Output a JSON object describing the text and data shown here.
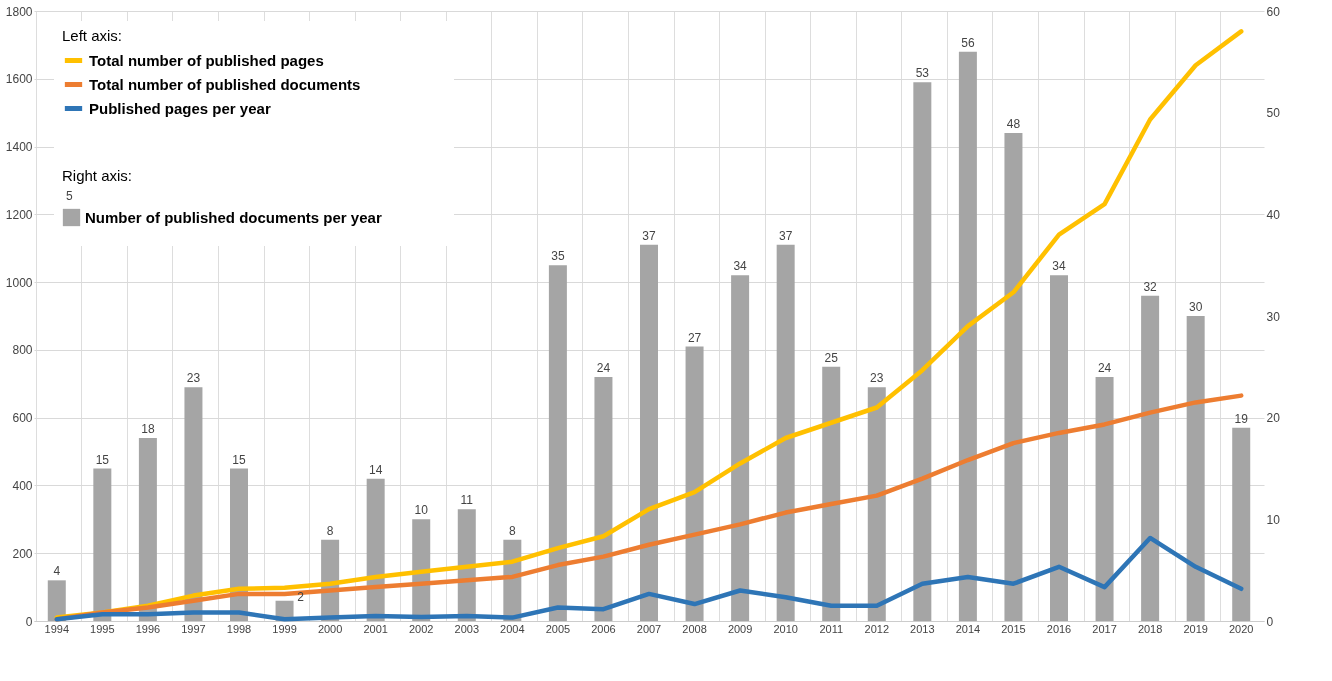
{
  "chart_data": {
    "type": "bar",
    "categories": [
      "1994",
      "1995",
      "1996",
      "1997",
      "1998",
      "1999",
      "2000",
      "2001",
      "2002",
      "2003",
      "2004",
      "2005",
      "2006",
      "2007",
      "2008",
      "2009",
      "2010",
      "2011",
      "2012",
      "2013",
      "2014",
      "2015",
      "2016",
      "2017",
      "2018",
      "2019",
      "2020"
    ],
    "series": [
      {
        "name": "Number of published documents per year",
        "axis": "y2",
        "color": "#a5a5a5",
        "values": [
          4,
          15,
          18,
          23,
          15,
          2,
          8,
          14,
          10,
          11,
          8,
          35,
          24,
          37,
          27,
          34,
          37,
          25,
          23,
          53,
          56,
          48,
          34,
          24,
          32,
          30,
          19
        ],
        "value_labels": [
          "4",
          "15",
          "18",
          "23",
          "15",
          "2",
          "8",
          "14",
          "10",
          "11",
          "8",
          "35",
          "24",
          "37",
          "27",
          "34",
          "37",
          "25",
          "23",
          "53",
          "56",
          "48",
          "34",
          "24",
          "32",
          "30",
          "19"
        ]
      },
      {
        "name": "Total number of published pages",
        "type": "line",
        "color": "#ffc000",
        "values": [
          10,
          25,
          45,
          75,
          95,
          98,
          110,
          130,
          145,
          160,
          175,
          215,
          250,
          330,
          380,
          465,
          540,
          585,
          630,
          740,
          870,
          970,
          1140,
          1230,
          1480,
          1640,
          1740
        ]
      },
      {
        "name": "Total number of published documents",
        "type": "line",
        "color": "#ed7d31",
        "values": [
          5,
          25,
          40,
          60,
          80,
          80,
          90,
          100,
          110,
          120,
          130,
          165,
          190,
          225,
          255,
          285,
          320,
          345,
          370,
          420,
          475,
          525,
          555,
          580,
          615,
          645,
          665
        ]
      },
      {
        "name": "Published pages per year",
        "type": "line",
        "color": "#2e75b6",
        "values": [
          5,
          20,
          20,
          25,
          25,
          5,
          10,
          15,
          12,
          15,
          10,
          40,
          35,
          80,
          50,
          90,
          70,
          45,
          45,
          110,
          130,
          110,
          160,
          100,
          245,
          160,
          95
        ]
      }
    ],
    "ylim": [
      0,
      1800
    ],
    "yticks": [
      0,
      200,
      400,
      600,
      800,
      1000,
      1200,
      1400,
      1600,
      1800
    ],
    "y2lim": [
      0,
      60
    ],
    "y2ticks": [
      0,
      10,
      20,
      30,
      40,
      50,
      60
    ],
    "legend_title": "Left axis:",
    "annotations": [
      "Right axis:",
      "5"
    ],
    "grid": true,
    "legend": "top left",
    "line_style": "solid"
  }
}
